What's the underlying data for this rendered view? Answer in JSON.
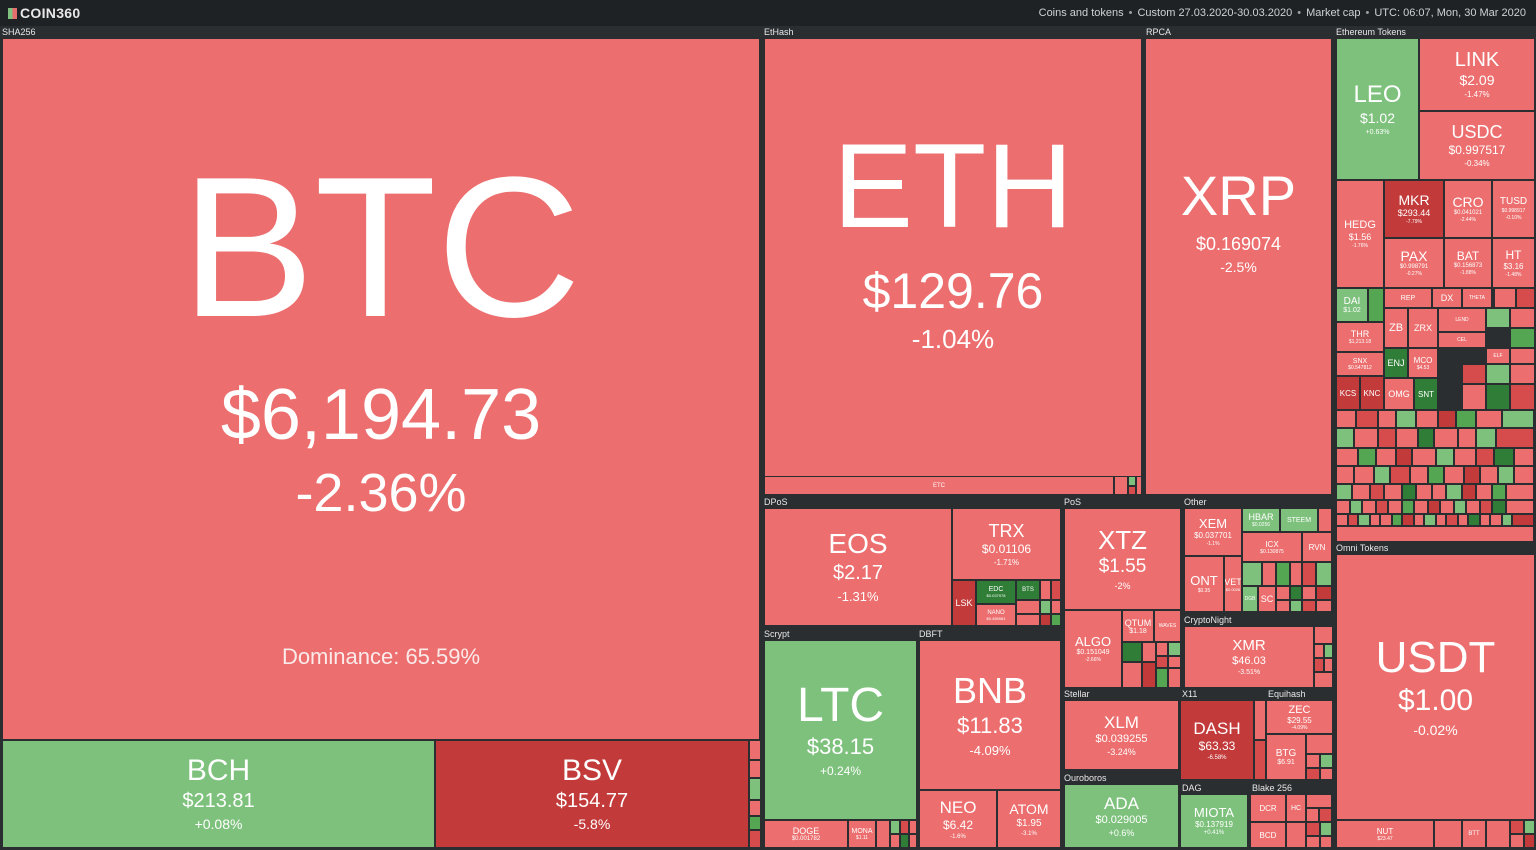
{
  "app": {
    "logo": "COIN360"
  },
  "nav": {
    "coins": "Coins and tokens",
    "range": "Custom 27.03.2020-30.03.2020",
    "metric": "Market cap",
    "time": "UTC: 06:07, Mon, 30 Mar 2020"
  },
  "groups": {
    "sha256": "SHA256",
    "ethash": "EtHash",
    "rpca": "RPCA",
    "ethtokens": "Ethereum Tokens",
    "dpos": "DPoS",
    "pos": "PoS",
    "other": "Other",
    "scrypt": "Scrypt",
    "dbft": "DBFT",
    "cryptonight": "CryptoNight",
    "stellar": "Stellar",
    "x11": "X11",
    "equihash": "Equihash",
    "ouroboros": "Ouroboros",
    "dag": "DAG",
    "blake256": "Blake 256",
    "omni": "Omni Tokens"
  },
  "coins": {
    "btc": {
      "sym": "BTC",
      "price": "$6,194.73",
      "change": "-2.36%",
      "dominance": "Dominance: 65.59%"
    },
    "bch": {
      "sym": "BCH",
      "price": "$213.81",
      "change": "+0.08%"
    },
    "bsv": {
      "sym": "BSV",
      "price": "$154.77",
      "change": "-5.8%"
    },
    "eth": {
      "sym": "ETH",
      "price": "$129.76",
      "change": "-1.04%"
    },
    "etc": {
      "sym": "ETC"
    },
    "xrp": {
      "sym": "XRP",
      "price": "$0.169074",
      "change": "-2.5%"
    },
    "leo": {
      "sym": "LEO",
      "price": "$1.02",
      "change": "+0.63%"
    },
    "link": {
      "sym": "LINK",
      "price": "$2.09",
      "change": "-1.47%"
    },
    "usdc": {
      "sym": "USDC",
      "price": "$0.997517",
      "change": "-0.34%"
    },
    "hedg": {
      "sym": "HEDG",
      "price": "$1.56",
      "change": "-1.76%"
    },
    "mkr": {
      "sym": "MKR",
      "price": "$293.44",
      "change": "-7.79%"
    },
    "cro": {
      "sym": "CRO",
      "price": "$0.041021",
      "change": "-2.44%"
    },
    "tusd": {
      "sym": "TUSD",
      "price": "$0.998917",
      "change": "-0.10%"
    },
    "pax": {
      "sym": "PAX",
      "price": "$0.998791",
      "change": "-0.27%"
    },
    "bat": {
      "sym": "BAT",
      "price": "$0.156873",
      "change": "-1.88%"
    },
    "ht": {
      "sym": "HT",
      "price": "$3.16",
      "change": "-1.48%"
    },
    "dai": {
      "sym": "DAI",
      "price": "$1.02"
    },
    "thr": {
      "sym": "THR",
      "price": "$1,213.18"
    },
    "zb": {
      "sym": "ZB"
    },
    "zrx": {
      "sym": "ZRX"
    },
    "snx": {
      "sym": "SNX",
      "price": "$0.547812"
    },
    "enj": {
      "sym": "ENJ"
    },
    "mco": {
      "sym": "MCO",
      "price": "$4.53"
    },
    "kcs": {
      "sym": "KCS"
    },
    "knc": {
      "sym": "KNC"
    },
    "omg": {
      "sym": "OMG"
    },
    "snt": {
      "sym": "SNT"
    },
    "rep": {
      "sym": "REP"
    },
    "dx": {
      "sym": "DX"
    },
    "theta": {
      "sym": "THETA"
    },
    "lend": {
      "sym": "LEND"
    },
    "cel": {
      "sym": "CEL"
    },
    "elf": {
      "sym": "ELF"
    },
    "eos": {
      "sym": "EOS",
      "price": "$2.17",
      "change": "-1.31%"
    },
    "trx": {
      "sym": "TRX",
      "price": "$0.01106",
      "change": "-1.71%"
    },
    "lsk": {
      "sym": "LSK"
    },
    "edc": {
      "sym": "EDC",
      "price": "$0.037978"
    },
    "nano": {
      "sym": "NANO",
      "price": "$0.455981"
    },
    "bts": {
      "sym": "BTS"
    },
    "xtz": {
      "sym": "XTZ",
      "price": "$1.55",
      "change": "-2%"
    },
    "algo": {
      "sym": "ALGO",
      "price": "$0.151049",
      "change": "-2.66%"
    },
    "qtum": {
      "sym": "QTUM",
      "price": "$1.18"
    },
    "waves": {
      "sym": "WAVES"
    },
    "xem": {
      "sym": "XEM",
      "price": "$0.037701",
      "change": "-1.1%"
    },
    "hbar": {
      "sym": "HBAR",
      "price": "$0.0256"
    },
    "steem": {
      "sym": "STEEM"
    },
    "icx": {
      "sym": "ICX",
      "price": "$0.130875"
    },
    "ont": {
      "sym": "ONT",
      "price": "$0.35"
    },
    "vet": {
      "sym": "VET",
      "price": "$0.0026"
    },
    "rvn": {
      "sym": "RVN"
    },
    "dgb": {
      "sym": "DGB"
    },
    "sc": {
      "sym": "SC"
    },
    "xmr": {
      "sym": "XMR",
      "price": "$46.03",
      "change": "-3.51%"
    },
    "ltc": {
      "sym": "LTC",
      "price": "$38.15",
      "change": "+0.24%"
    },
    "doge": {
      "sym": "DOGE",
      "price": "$0.001782"
    },
    "mona": {
      "sym": "MONA",
      "price": "$1.11"
    },
    "bnb": {
      "sym": "BNB",
      "price": "$11.83",
      "change": "-4.09%"
    },
    "neo": {
      "sym": "NEO",
      "price": "$6.42",
      "change": "-1.6%"
    },
    "atom": {
      "sym": "ATOM",
      "price": "$1.95",
      "change": "-3.1%"
    },
    "xlm": {
      "sym": "XLM",
      "price": "$0.039255",
      "change": "-3.24%"
    },
    "dash": {
      "sym": "DASH",
      "price": "$63.33",
      "change": "-6.58%"
    },
    "zec": {
      "sym": "ZEC",
      "price": "$29.55",
      "change": "-4.09%"
    },
    "btg": {
      "sym": "BTG",
      "price": "$6.91"
    },
    "ada": {
      "sym": "ADA",
      "price": "$0.029005",
      "change": "+0.6%"
    },
    "miota": {
      "sym": "MIOTA",
      "price": "$0.137919",
      "change": "+0.41%"
    },
    "dcr": {
      "sym": "DCR"
    },
    "bcd": {
      "sym": "BCD"
    },
    "hc": {
      "sym": "HC"
    },
    "usdt": {
      "sym": "USDT",
      "price": "$1.00",
      "change": "-0.02%"
    },
    "nut": {
      "sym": "NUT",
      "price": "$23.47"
    },
    "btt": {
      "sym": "BTT"
    }
  }
}
